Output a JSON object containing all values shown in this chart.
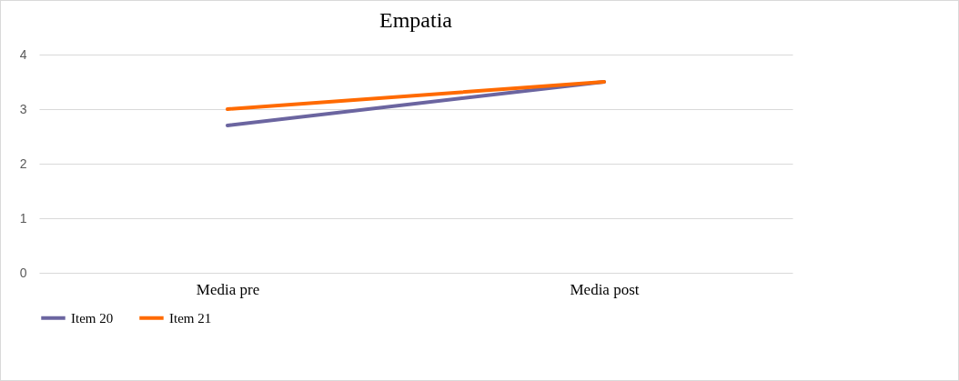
{
  "chart_data": {
    "type": "line",
    "title": "Empatia",
    "categories": [
      "Media pre",
      "Media post"
    ],
    "series": [
      {
        "name": "Item 20",
        "color": "#6b65a0",
        "values": [
          2.7,
          3.5
        ]
      },
      {
        "name": "Item 21",
        "color": "#ff6a00",
        "values": [
          3.0,
          3.5
        ]
      }
    ],
    "ylim": [
      0,
      4
    ],
    "yticks": [
      0,
      1,
      2,
      3,
      4
    ],
    "grid": "y",
    "legend": "bottom",
    "marker": "none",
    "line_style": "solid"
  }
}
